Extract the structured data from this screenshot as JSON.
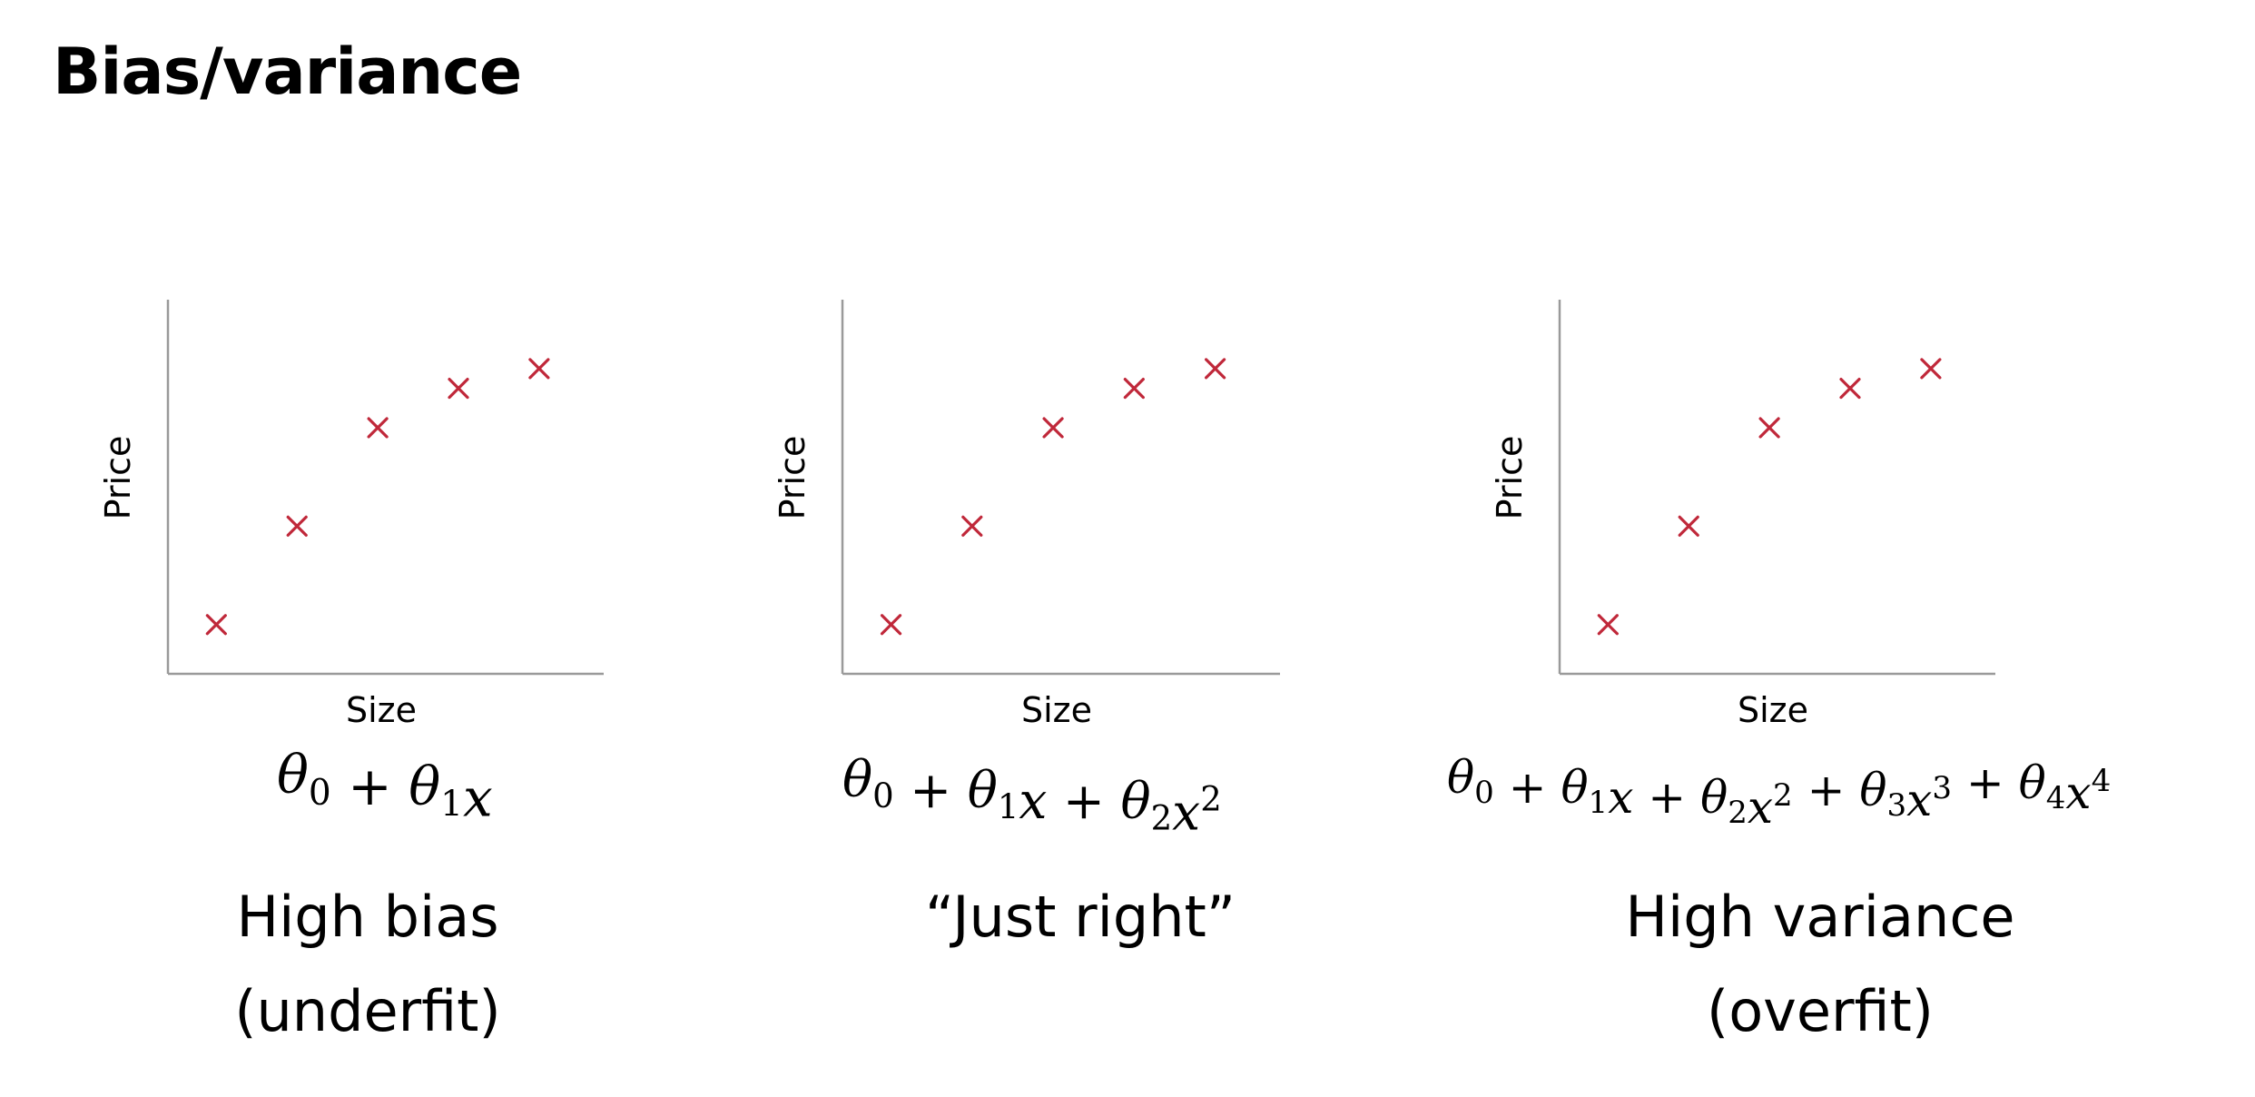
{
  "slide": {
    "title": "Bias/variance"
  },
  "chart_data": [
    {
      "type": "scatter",
      "title": "",
      "xlabel": "Size",
      "ylabel": "Price",
      "x": [
        1,
        2,
        3,
        4,
        5
      ],
      "y": [
        1.0,
        2.0,
        3.0,
        3.4,
        3.6
      ],
      "xlim": [
        0.4,
        5.8
      ],
      "ylim": [
        0.5,
        4.3
      ],
      "marker": "x",
      "marker_color": "#c0283a",
      "formula": "θ0 + θ1x",
      "caption": [
        "High bias",
        "(underfit)"
      ]
    },
    {
      "type": "scatter",
      "title": "",
      "xlabel": "Size",
      "ylabel": "Price",
      "x": [
        1,
        2,
        3,
        4,
        5
      ],
      "y": [
        1.0,
        2.0,
        3.0,
        3.4,
        3.6
      ],
      "xlim": [
        0.4,
        5.8
      ],
      "ylim": [
        0.5,
        4.3
      ],
      "marker": "x",
      "marker_color": "#c0283a",
      "formula": "θ0 + θ1x + θ2x^2",
      "caption": [
        "“Just right”"
      ]
    },
    {
      "type": "scatter",
      "title": "",
      "xlabel": "Size",
      "ylabel": "Price",
      "x": [
        1,
        2,
        3,
        4,
        5
      ],
      "y": [
        1.0,
        2.0,
        3.0,
        3.4,
        3.6
      ],
      "xlim": [
        0.4,
        5.8
      ],
      "ylim": [
        0.5,
        4.3
      ],
      "marker": "x",
      "marker_color": "#c0283a",
      "formula": "θ0 + θ1x + θ2x^2 + θ3x^3 + θ4x^4",
      "caption": [
        "High variance",
        "(overfit)"
      ]
    }
  ]
}
